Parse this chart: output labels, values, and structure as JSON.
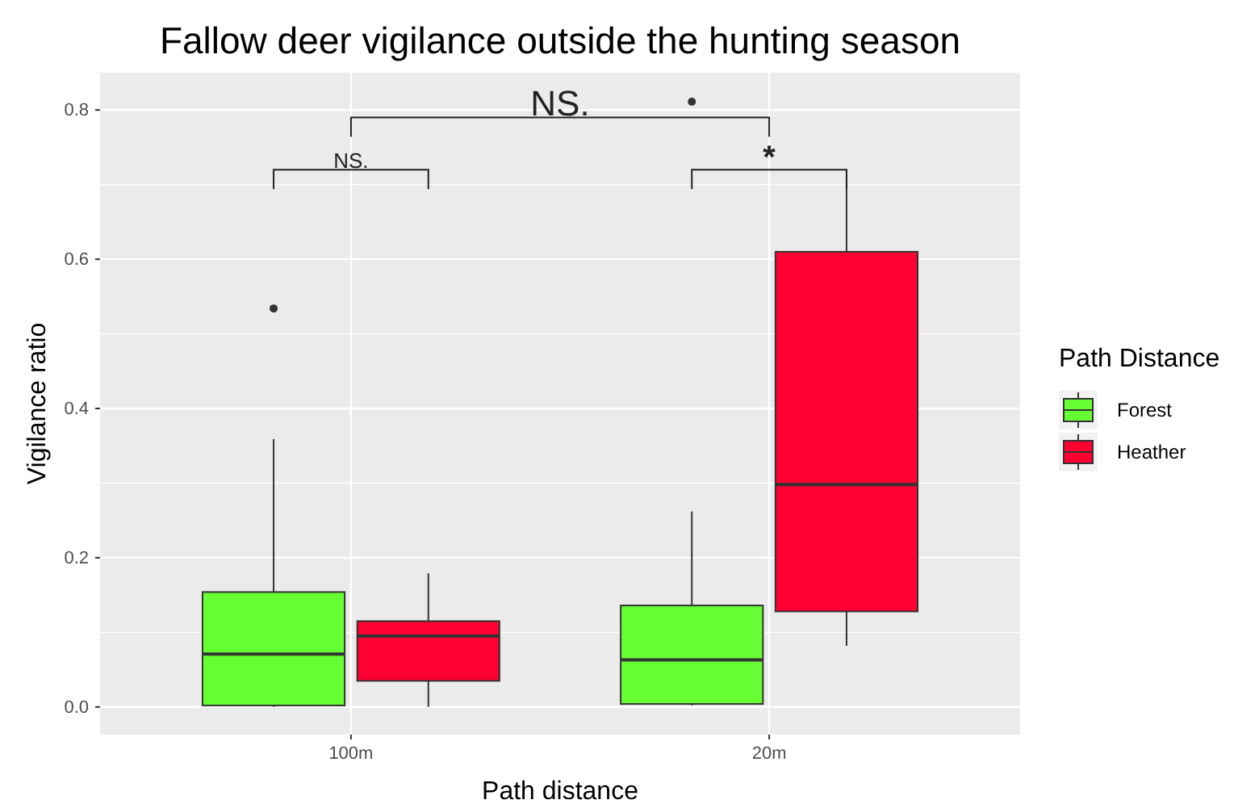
{
  "chart_data": {
    "type": "box",
    "title": "Fallow deer vigilance outside the hunting season",
    "xlabel": "Path distance",
    "ylabel": "Vigilance ratio",
    "legend_title": "Path Distance",
    "legend": "right",
    "grid": true,
    "categories": [
      "100m",
      "20m"
    ],
    "ylim": [
      -0.037,
      0.85
    ],
    "yticks": [
      {
        "value": 0,
        "label": "0.0"
      },
      {
        "value": 0.2,
        "label": "0.2"
      },
      {
        "value": 0.4,
        "label": "0.4"
      },
      {
        "value": 0.6,
        "label": "0.6"
      },
      {
        "value": 0.8,
        "label": "0.8"
      }
    ],
    "series": [
      {
        "name": "Forest",
        "color": "#66ff33",
        "boxes": [
          {
            "low": 0.0,
            "q1": 0.002,
            "median": 0.071,
            "q3": 0.154,
            "high": 0.359,
            "outliers": [
              0.534
            ]
          },
          {
            "low": 0.002,
            "q1": 0.004,
            "median": 0.063,
            "q3": 0.136,
            "high": 0.262,
            "outliers": [
              0.811
            ]
          }
        ]
      },
      {
        "name": "Heather",
        "color": "#ff0033",
        "boxes": [
          {
            "low": 0.0,
            "q1": 0.035,
            "median": 0.095,
            "q3": 0.115,
            "high": 0.179
          },
          {
            "low": 0.082,
            "q1": 0.128,
            "median": 0.298,
            "q3": 0.61,
            "high": 0.713
          }
        ]
      }
    ],
    "annotations": [
      "NS.",
      "*",
      "NS."
    ]
  }
}
